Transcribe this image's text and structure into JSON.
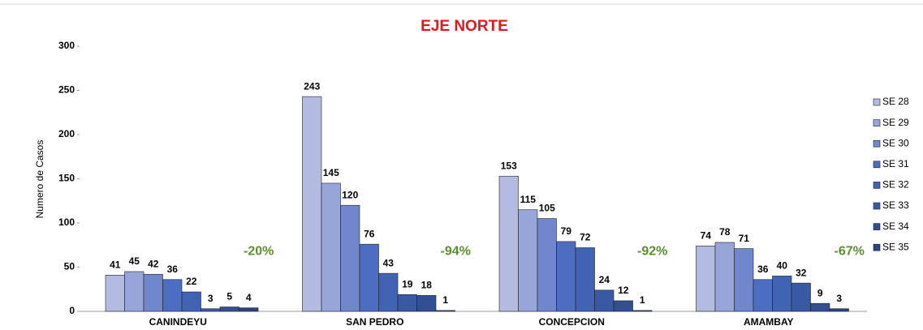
{
  "chart_data": {
    "type": "bar",
    "title": "EJE NORTE",
    "y_label": "Numero de Casos",
    "categories": [
      "CANINDEYU",
      "SAN PEDRO",
      "CONCEPCION",
      "AMAMBAY"
    ],
    "series": [
      {
        "name": "SE 28",
        "color": "#b3bce0",
        "values": [
          41,
          243,
          153,
          74
        ]
      },
      {
        "name": "SE 29",
        "color": "#97a5d8",
        "values": [
          45,
          145,
          115,
          78
        ]
      },
      {
        "name": "SE 30",
        "color": "#7187cb",
        "values": [
          42,
          120,
          105,
          71
        ]
      },
      {
        "name": "SE 31",
        "color": "#4c6dc1",
        "values": [
          36,
          76,
          79,
          36
        ]
      },
      {
        "name": "SE 32",
        "color": "#4063b4",
        "values": [
          22,
          43,
          72,
          40
        ]
      },
      {
        "name": "SE 33",
        "color": "#3a59a4",
        "values": [
          3,
          19,
          24,
          32
        ]
      },
      {
        "name": "SE 34",
        "color": "#334e92",
        "values": [
          5,
          18,
          12,
          9
        ]
      },
      {
        "name": "SE 35",
        "color": "#2b4380",
        "values": [
          4,
          1,
          1,
          3
        ]
      }
    ],
    "annotations": [
      "-20%",
      "-94%",
      "-92%",
      "-67%"
    ],
    "ylim": [
      0,
      300
    ],
    "yticks": [
      0,
      50,
      100,
      150,
      200,
      250,
      300
    ],
    "grid": false,
    "legend": "right"
  }
}
